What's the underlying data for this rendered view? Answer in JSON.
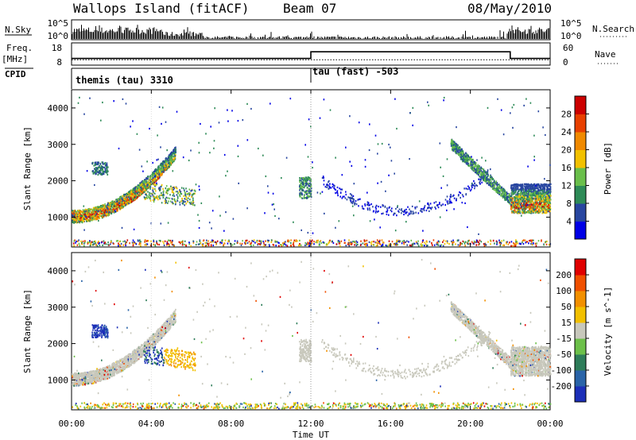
{
  "header": {
    "title": "Wallops Island (fitACF)",
    "beam": "Beam 07",
    "date": "08/May/2010"
  },
  "strips": {
    "nsky_label": "N.Sky",
    "nsearch_label": "N.Search",
    "freq_label": "Freq.",
    "freq_unit": "[MHz]",
    "nave_label": "Nave",
    "cpid_label": "CPID",
    "nsky_ticks": [
      "10^5",
      "10^0"
    ],
    "nsearch_ticks": [
      "10^5",
      "10^0"
    ],
    "freq_ticks": [
      "18",
      "8"
    ],
    "nave_ticks": [
      "60",
      "0"
    ]
  },
  "cpid_modes": [
    {
      "text": "themis (tau) 3310",
      "start_hour": 0
    },
    {
      "text": "tau (fast) -503",
      "start_hour": 12
    }
  ],
  "chart_data": [
    {
      "type": "line",
      "panel": "noise",
      "series": [
        {
          "name": "N.Sky"
        },
        {
          "name": "N.Search"
        }
      ],
      "ylim": [
        0,
        5
      ],
      "x_range_hours": [
        0,
        24
      ]
    },
    {
      "type": "line",
      "panel": "frequency",
      "series": [
        {
          "name": "Freq.",
          "x": [
            0,
            12,
            12,
            24
          ],
          "values": [
            10.4,
            10.4,
            10.4,
            10.4
          ]
        },
        {
          "name": "Nave",
          "x": [
            0,
            12,
            12,
            22,
            22,
            24
          ],
          "values": [
            18,
            18,
            36,
            36,
            18,
            18
          ]
        }
      ],
      "ylim_left": [
        8,
        18
      ],
      "ylim_right": [
        0,
        60
      ]
    },
    {
      "type": "heatmap",
      "panel": "power",
      "ylabel": "Slant Range [km]",
      "ylim": [
        180,
        4500
      ],
      "yticks": [
        "4000",
        "3000",
        "2000",
        "1000"
      ],
      "colorbar_label": "Power [dB]",
      "colorbar_ticks": [
        "28",
        "24",
        "20",
        "16",
        "12",
        "8",
        "4"
      ],
      "colorbar_colors": [
        "#0000e6",
        "#2846a0",
        "#2e8b57",
        "#6abf4b",
        "#f2c100",
        "#f08a00",
        "#e84000",
        "#cc0000"
      ]
    },
    {
      "type": "heatmap",
      "panel": "velocity",
      "ylabel": "Slant Range [km]",
      "ylim": [
        180,
        4500
      ],
      "yticks": [
        "4000",
        "3000",
        "2000",
        "1000"
      ],
      "colorbar_label": "Velocity [m s^-1]",
      "colorbar_ticks": [
        "200",
        "100",
        "50",
        "15",
        "-15",
        "-50",
        "-100",
        "-200"
      ],
      "colorbar_colors": [
        "#1c2fb8",
        "#2a64a8",
        "#2e7d5a",
        "#6cc04a",
        "#c8c8bc",
        "#f2c000",
        "#f29000",
        "#f05000",
        "#e00000"
      ]
    }
  ],
  "xaxis": {
    "label": "Time UT",
    "ticks": [
      "00:00",
      "04:00",
      "08:00",
      "12:00",
      "16:00",
      "20:00",
      "00:00"
    ]
  }
}
